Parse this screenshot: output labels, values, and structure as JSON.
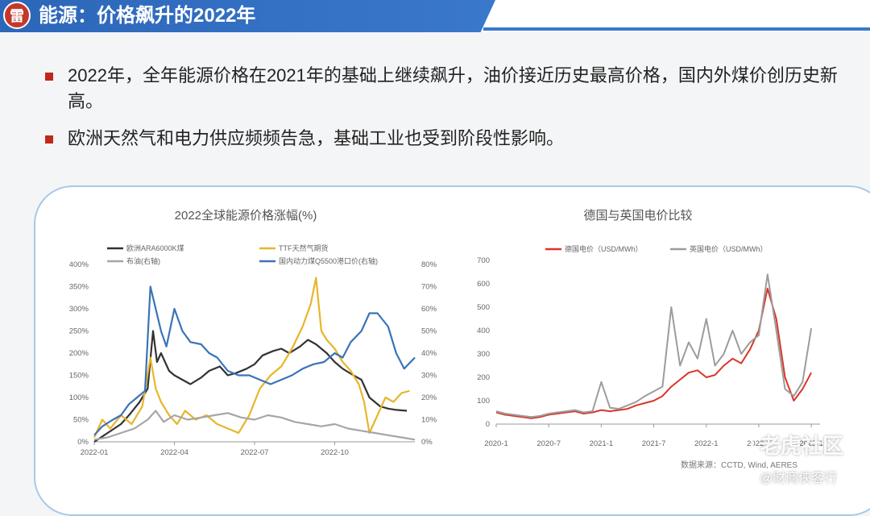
{
  "header": {
    "logo_glyph": "雷",
    "title": "能源：价格飙升的2022年"
  },
  "bullets": [
    "2022年，全年能源价格在2021年的基础上继续飙升，油价接近历史最高价格，国内外煤价创历史新高。",
    "欧洲天然气和电力供应频频告急，基础工业也受到阶段性影响。"
  ],
  "colors": {
    "brand_blue": "#2c66b8",
    "bullet_red": "#c0281c",
    "coal_black": "#333333",
    "ttf_yellow": "#e8b52c",
    "brent_gray": "#a6a6a6",
    "china_coal_blue": "#3a73b8",
    "germany_red": "#d9362a",
    "uk_gray": "#9c9c9c"
  },
  "chart_data": [
    {
      "type": "line",
      "title": "2022全球能源价格涨幅(%)",
      "x_ticks": [
        "2022-01",
        "2022-04",
        "2022-07",
        "2022-10"
      ],
      "y_left_ticks": [
        "400%",
        "350%",
        "300%",
        "250%",
        "200%",
        "150%",
        "100%",
        "50%",
        "0%"
      ],
      "y_right_ticks": [
        "80%",
        "70%",
        "60%",
        "50%",
        "40%",
        "30%",
        "20%",
        "10%",
        "0%"
      ],
      "ylim_left": [
        0,
        400
      ],
      "ylim_right": [
        0,
        80
      ],
      "x_range_months": [
        0,
        12
      ],
      "legend_position": "top",
      "series": [
        {
          "name": "欧洲ARA6000K煤",
          "axis": "left",
          "color": "#333333",
          "x": [
            0,
            0.5,
            1,
            1.3,
            1.7,
            2.0,
            2.2,
            2.35,
            2.5,
            2.8,
            3.0,
            3.3,
            3.6,
            4.0,
            4.3,
            4.7,
            5.0,
            5.3,
            5.7,
            6.0,
            6.3,
            6.7,
            7.0,
            7.3,
            7.7,
            8.0,
            8.3,
            8.7,
            9.0,
            9.3,
            9.7,
            10.0,
            10.3,
            10.7,
            11.0,
            11.3,
            11.7
          ],
          "y": [
            0,
            20,
            40,
            60,
            90,
            120,
            250,
            180,
            200,
            160,
            150,
            140,
            130,
            145,
            160,
            170,
            150,
            155,
            165,
            175,
            195,
            205,
            210,
            200,
            215,
            230,
            220,
            200,
            180,
            165,
            150,
            140,
            100,
            80,
            75,
            72,
            70
          ]
        },
        {
          "name": "TTF天然气期货",
          "axis": "left",
          "color": "#e8b52c",
          "x": [
            0,
            0.3,
            0.6,
            1.0,
            1.4,
            1.8,
            2.1,
            2.3,
            2.5,
            2.8,
            3.1,
            3.4,
            3.8,
            4.2,
            4.6,
            5.0,
            5.4,
            5.8,
            6.2,
            6.6,
            7.0,
            7.4,
            7.8,
            8.1,
            8.3,
            8.5,
            8.7,
            9.0,
            9.3,
            9.6,
            9.9,
            10.1,
            10.3,
            10.6,
            10.9,
            11.2,
            11.5,
            11.8
          ],
          "y": [
            10,
            50,
            30,
            60,
            40,
            80,
            190,
            120,
            90,
            60,
            40,
            70,
            50,
            60,
            40,
            30,
            20,
            60,
            120,
            150,
            170,
            210,
            260,
            310,
            370,
            250,
            230,
            210,
            180,
            160,
            130,
            90,
            20,
            60,
            100,
            90,
            110,
            115
          ]
        },
        {
          "name": "布油(右轴)",
          "axis": "right",
          "color": "#a6a6a6",
          "x": [
            0,
            0.5,
            1,
            1.5,
            2,
            2.3,
            2.6,
            3,
            3.5,
            4,
            4.5,
            5,
            5.5,
            6,
            6.5,
            7,
            7.5,
            8,
            8.5,
            9,
            9.5,
            10,
            10.5,
            11,
            11.5,
            12
          ],
          "y": [
            1,
            2,
            4,
            6,
            10,
            14,
            9,
            12,
            10,
            11,
            12,
            13,
            11,
            10,
            12,
            11,
            9,
            8,
            7,
            8,
            6,
            5,
            4,
            3,
            2,
            1
          ]
        },
        {
          "name": "国内动力煤Q5500港口价(右轴)",
          "axis": "right",
          "color": "#3a73b8",
          "x": [
            0,
            0.3,
            0.7,
            1.0,
            1.3,
            1.6,
            1.9,
            2.1,
            2.3,
            2.5,
            2.7,
            3.0,
            3.3,
            3.6,
            4.0,
            4.3,
            4.6,
            5.0,
            5.4,
            5.8,
            6.2,
            6.6,
            7.0,
            7.4,
            7.8,
            8.2,
            8.6,
            9.0,
            9.3,
            9.6,
            10.0,
            10.3,
            10.6,
            11.0,
            11.3,
            11.6,
            12.0
          ],
          "y": [
            3,
            7,
            10,
            12,
            17,
            20,
            23,
            70,
            60,
            50,
            43,
            60,
            50,
            45,
            44,
            40,
            38,
            32,
            30,
            30,
            28,
            26,
            28,
            30,
            33,
            35,
            36,
            40,
            38,
            45,
            50,
            58,
            58,
            52,
            40,
            33,
            38
          ]
        }
      ]
    },
    {
      "type": "line",
      "title": "德国与英国电价比较",
      "x_ticks": [
        "2020-1",
        "2020-7",
        "2021-1",
        "2021-7",
        "2022-1",
        "2022-7",
        "2023-1"
      ],
      "y_ticks": [
        "700",
        "600",
        "500",
        "400",
        "300",
        "200",
        "100",
        "0"
      ],
      "ylim": [
        0,
        700
      ],
      "x_range_months": [
        0,
        37
      ],
      "legend_position": "top",
      "source_note": "数据来源：CCTD, Wind, AERES",
      "series": [
        {
          "name": "德国电价（USD/MWh）",
          "color": "#d9362a",
          "x": [
            0,
            1,
            2,
            3,
            4,
            5,
            6,
            7,
            8,
            9,
            10,
            11,
            12,
            13,
            14,
            15,
            16,
            17,
            18,
            19,
            20,
            21,
            22,
            23,
            24,
            25,
            26,
            27,
            28,
            29,
            30,
            31,
            32,
            33,
            34,
            35,
            36
          ],
          "y": [
            50,
            40,
            35,
            30,
            25,
            30,
            40,
            45,
            50,
            55,
            45,
            50,
            60,
            55,
            60,
            65,
            80,
            90,
            100,
            120,
            160,
            190,
            220,
            230,
            200,
            210,
            250,
            280,
            260,
            320,
            400,
            580,
            450,
            200,
            100,
            150,
            220
          ]
        },
        {
          "name": "英国电价（USD/MWh）",
          "color": "#9c9c9c",
          "x": [
            0,
            1,
            2,
            3,
            4,
            5,
            6,
            7,
            8,
            9,
            10,
            11,
            12,
            13,
            14,
            15,
            16,
            17,
            18,
            19,
            20,
            21,
            22,
            23,
            24,
            25,
            26,
            27,
            28,
            29,
            30,
            31,
            32,
            33,
            34,
            35,
            36
          ],
          "y": [
            55,
            45,
            40,
            35,
            30,
            35,
            45,
            50,
            55,
            60,
            50,
            55,
            180,
            70,
            65,
            80,
            95,
            120,
            140,
            160,
            500,
            250,
            350,
            280,
            450,
            250,
            300,
            400,
            300,
            350,
            380,
            640,
            400,
            150,
            120,
            180,
            410
          ]
        }
      ]
    }
  ],
  "watermark": {
    "icon_glyph": "✚",
    "line1": "老虎社区",
    "line2": "@财商侠客行"
  }
}
